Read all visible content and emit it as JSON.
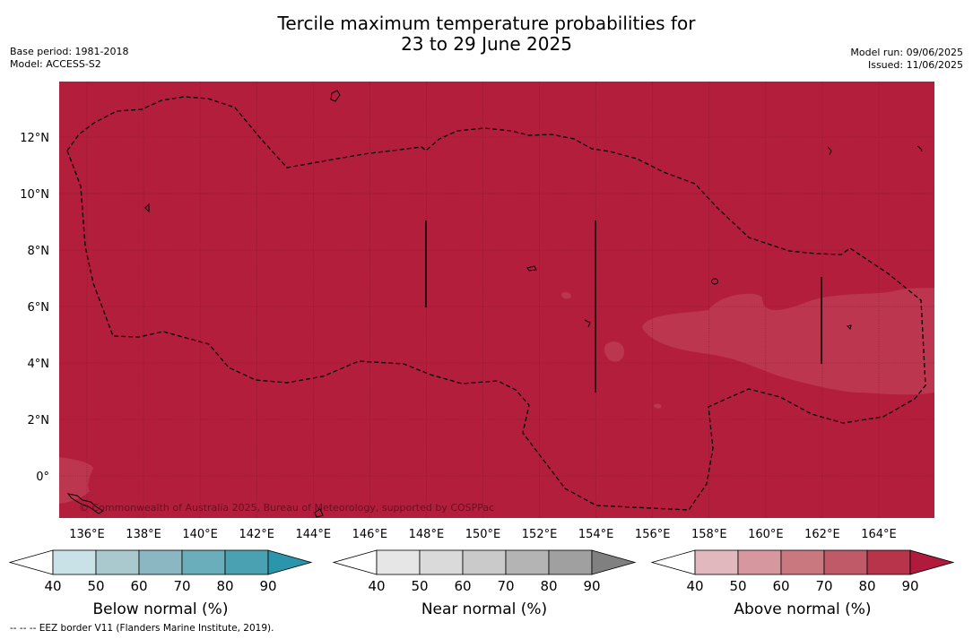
{
  "title_line1": "Tercile maximum temperature probabilities for",
  "title_line2": "23 to 29 June 2025",
  "base_period": "Base period: 1981-2018",
  "model": "Model: ACCESS-S2",
  "model_run": "Model run: 09/06/2025",
  "issued": "Issued: 11/06/2025",
  "copyright": "© Commonwealth of Australia 2025, Bureau of Meteorology, supported by COSPPac",
  "map": {
    "lon_labels": [
      "136°E",
      "138°E",
      "140°E",
      "142°E",
      "144°E",
      "146°E",
      "148°E",
      "150°E",
      "152°E",
      "154°E",
      "156°E",
      "158°E",
      "160°E",
      "162°E",
      "164°E"
    ],
    "lat_labels": [
      "12°N",
      "10°N",
      "8°N",
      "6°N",
      "4°N",
      "2°N",
      "0°"
    ],
    "base_color": "#b21e3c",
    "patch_color": "#bc3650"
  },
  "legends": [
    {
      "title": "Below normal (%)",
      "ticks": [
        "40",
        "50",
        "60",
        "70",
        "80",
        "90"
      ],
      "colors": [
        "#c8e2e8",
        "#a9c9cf",
        "#8ab7c2",
        "#6aaebb",
        "#4aa1b1",
        "#2a95ab"
      ]
    },
    {
      "title": "Near normal (%)",
      "ticks": [
        "40",
        "50",
        "60",
        "70",
        "80",
        "90"
      ],
      "colors": [
        "#e6e6e6",
        "#dadada",
        "#cacaca",
        "#b4b4b4",
        "#a0a0a0",
        "#808080"
      ]
    },
    {
      "title": "Above normal (%)",
      "ticks": [
        "40",
        "50",
        "60",
        "70",
        "80",
        "90"
      ],
      "colors": [
        "#e2b8bf",
        "#d7979f",
        "#ca7880",
        "#c05968",
        "#b8344b",
        "#b01a3c"
      ]
    }
  ],
  "footer": "--  --  -- EEZ border V11 (Flanders Marine Institute, 2019)."
}
